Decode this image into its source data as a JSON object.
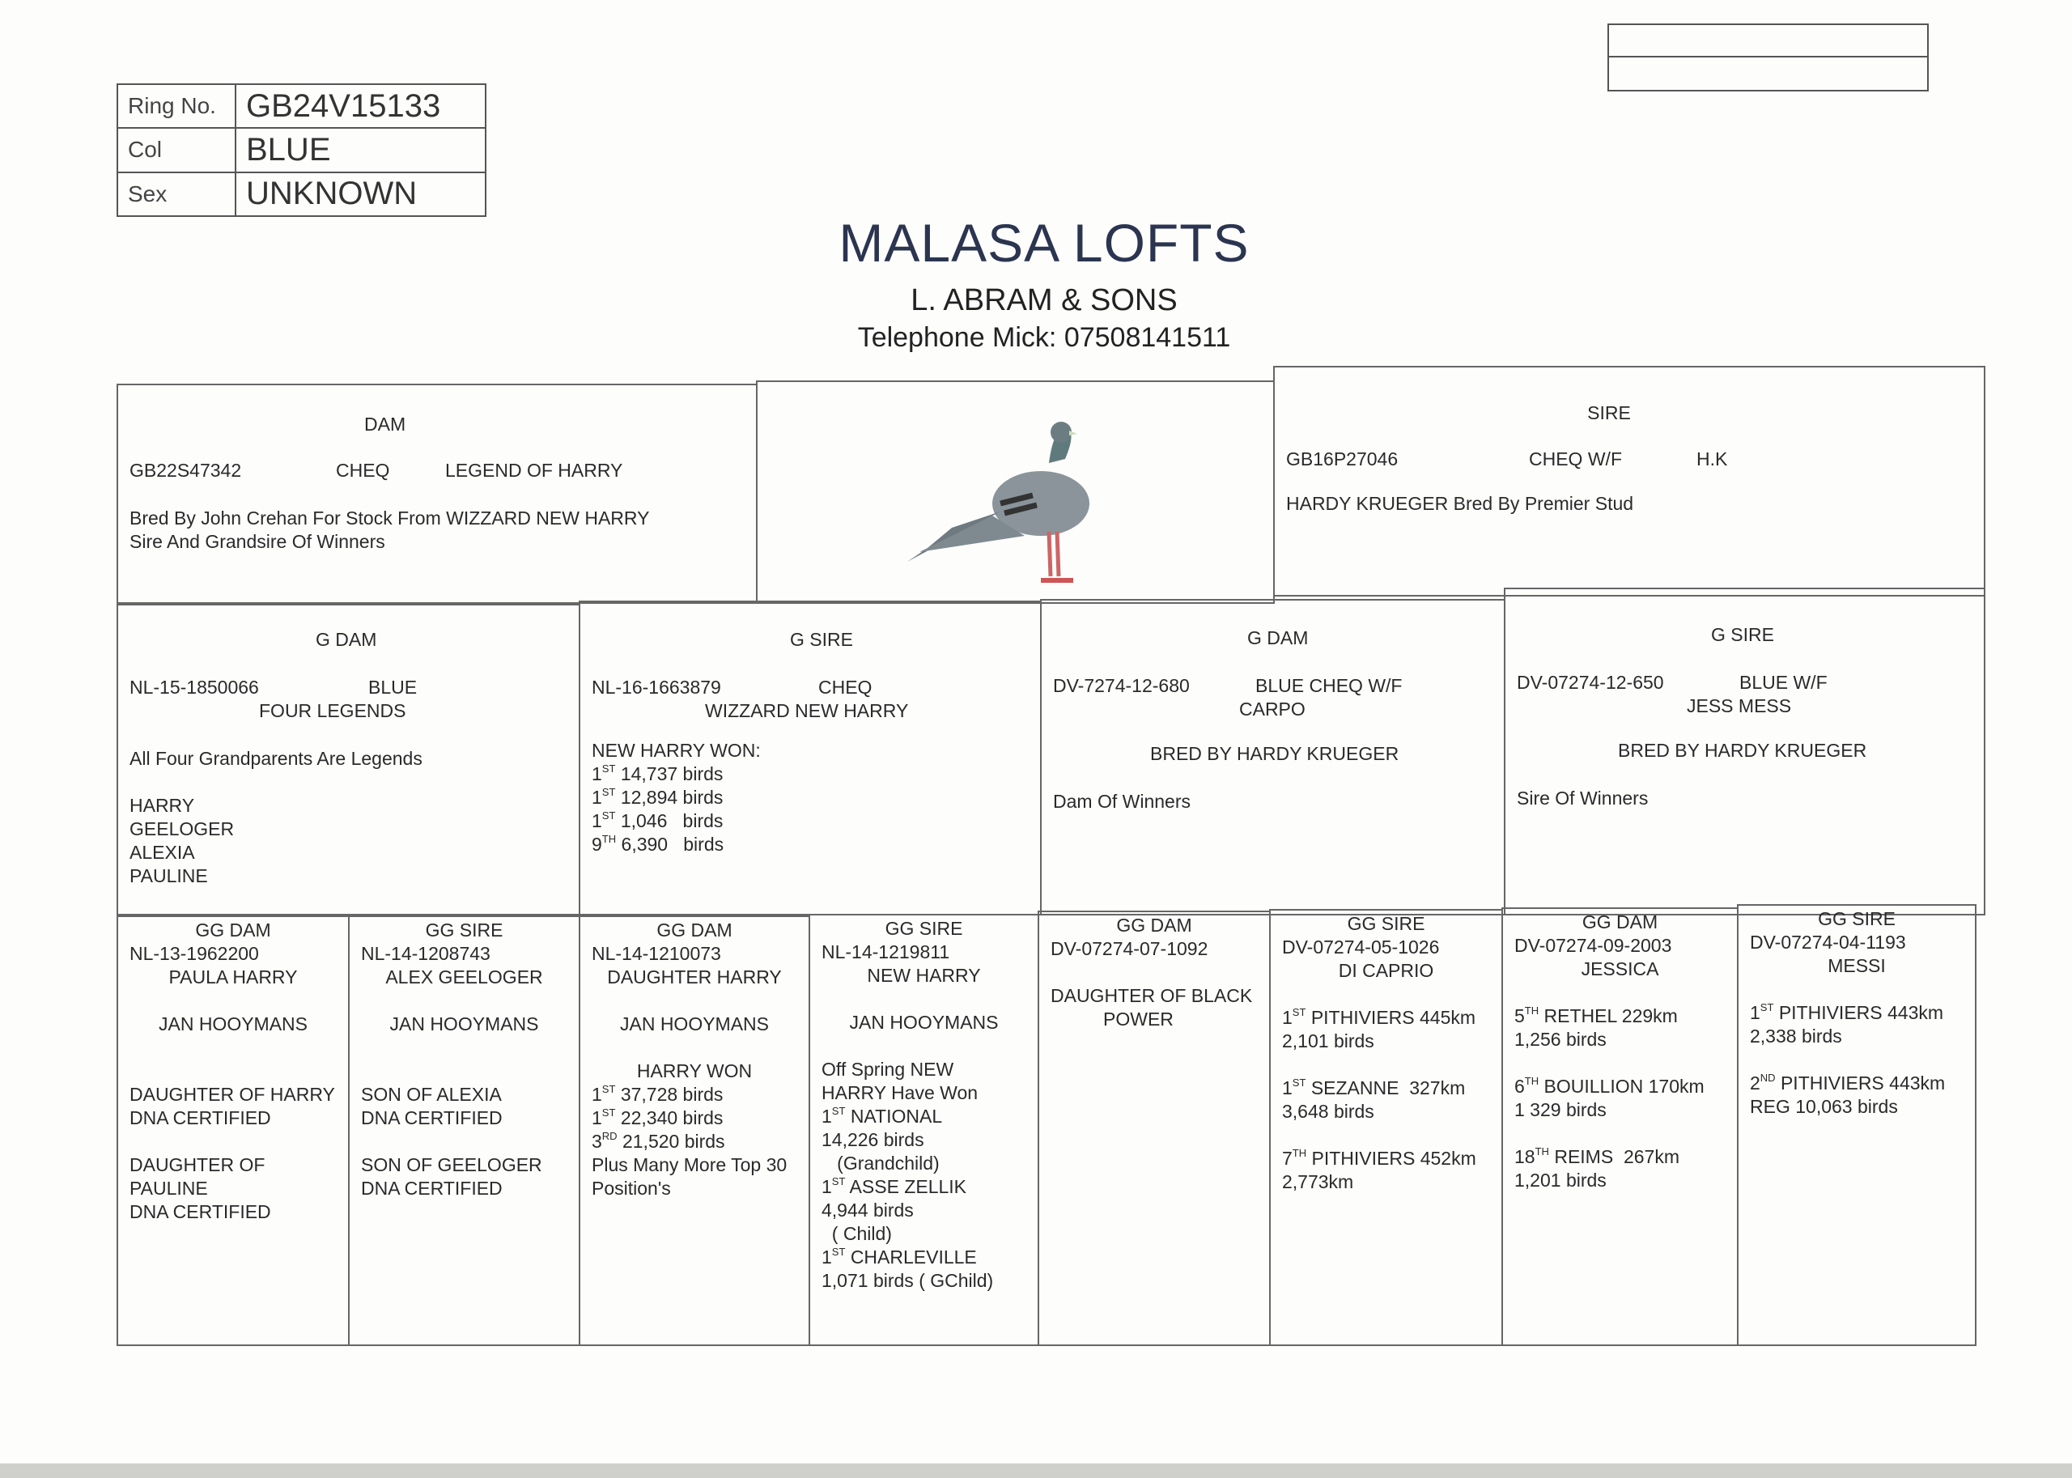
{
  "id_table": [
    {
      "label": "Ring No.",
      "value": "GB24V15133"
    },
    {
      "label": "Col",
      "value": "BLUE"
    },
    {
      "label": "Sex",
      "value": "UNKNOWN"
    }
  ],
  "header": {
    "title": "MALASA LOFTS",
    "subtitle": "L. ABRAM & SONS",
    "telephone": "Telephone Mick: 07508141511"
  },
  "dam": {
    "heading": "DAM",
    "ring": "GB22S47342",
    "colour": "CHEQ",
    "name": "LEGEND OF HARRY",
    "line1": "Bred By John Crehan  For Stock From WIZZARD NEW HARRY",
    "line2": "Sire And Grandsire Of Winners"
  },
  "photo": {
    "icon": "pigeon-image"
  },
  "sire": {
    "heading": "SIRE",
    "ring": "GB16P27046",
    "colour": "CHEQ W/F",
    "code": "H.K",
    "line1": "HARDY KRUEGER  Bred By Premier Stud"
  },
  "g_dam_1": {
    "heading": "G DAM",
    "ring": "NL-15-1850066",
    "colour": "BLUE",
    "name": "FOUR LEGENDS",
    "note": "All Four Grandparents Are Legends",
    "names": [
      "HARRY",
      "GEELOGER",
      "ALEXIA",
      "PAULINE"
    ]
  },
  "g_sire_1": {
    "heading": "G SIRE",
    "ring": "NL-16-1663879",
    "colour": "CHEQ",
    "name": "WIZZARD NEW HARRY",
    "won": "NEW HARRY WON:",
    "results": [
      {
        "pos": "1",
        "suf": "ST",
        "text": "14,737 birds"
      },
      {
        "pos": "1",
        "suf": "ST",
        "text": "12,894 birds"
      },
      {
        "pos": "1",
        "suf": "ST",
        "text": "1,046   birds"
      },
      {
        "pos": "9",
        "suf": "TH",
        "text": "6,390   birds"
      }
    ]
  },
  "g_dam_2": {
    "heading": "G DAM",
    "ring": "DV-7274-12-680",
    "colour": "BLUE CHEQ W/F",
    "name": "CARPO",
    "bred": "BRED BY HARDY KRUEGER",
    "note": "Dam Of Winners"
  },
  "g_sire_2": {
    "heading": "G SIRE",
    "ring": "DV-07274-12-650",
    "colour": "BLUE W/F",
    "name": "JESS MESS",
    "bred": "BRED BY HARDY KRUEGER",
    "note": "Sire Of Winners"
  },
  "gg": [
    {
      "heading": "GG DAM",
      "ring": "NL-13-1962200",
      "name": "PAULA HARRY",
      "breeder": "JAN HOOYMANS",
      "lines": [
        "DAUGHTER OF HARRY",
        "DNA CERTIFIED",
        "",
        "DAUGHTER OF",
        "PAULINE",
        "DNA CERTIFIED"
      ]
    },
    {
      "heading": "GG SIRE",
      "ring": "NL-14-1208743",
      "name": "ALEX GEELOGER",
      "breeder": "JAN HOOYMANS",
      "lines": [
        "SON OF ALEXIA",
        "DNA CERTIFIED",
        "",
        "SON OF GEELOGER",
        "DNA CERTIFIED"
      ]
    },
    {
      "heading": "GG DAM",
      "ring": "NL-14-1210073",
      "name": "DAUGHTER HARRY",
      "breeder": "JAN HOOYMANS",
      "won": "HARRY WON",
      "results": [
        {
          "pos": "1",
          "suf": "ST",
          "text": "37,728 birds"
        },
        {
          "pos": "1",
          "suf": "ST",
          "text": "22,340 birds"
        },
        {
          "pos": "3",
          "suf": "RD",
          "text": "21,520 birds"
        }
      ],
      "lines": [
        "Plus Many More Top 30",
        "Position's"
      ]
    },
    {
      "heading": "GG SIRE",
      "ring": "NL-14-1219811",
      "name": "NEW HARRY",
      "breeder": "JAN HOOYMANS",
      "lines": [
        "Off Spring NEW",
        "HARRY Have Won"
      ],
      "results": [
        {
          "pos": "1",
          "suf": "ST",
          "text": "NATIONAL"
        },
        {
          "pos": "",
          "suf": "",
          "text": "14,226 birds"
        },
        {
          "pos": "",
          "suf": "",
          "text": "   (Grandchild)"
        },
        {
          "pos": "1",
          "suf": "ST",
          "text": "ASSE ZELLIK"
        },
        {
          "pos": "",
          "suf": "",
          "text": "4,944 birds"
        },
        {
          "pos": "",
          "suf": "",
          "text": "  ( Child)"
        },
        {
          "pos": "1",
          "suf": "ST",
          "text": "CHARLEVILLE"
        },
        {
          "pos": "",
          "suf": "",
          "text": "1,071 birds ( GChild)"
        }
      ]
    },
    {
      "heading": "GG DAM",
      "ring": "DV-07274-07-1092",
      "lines": [
        "DAUGHTER OF BLACK",
        "POWER"
      ]
    },
    {
      "heading": "GG SIRE",
      "ring": "DV-07274-05-1026",
      "name": "DI CAPRIO",
      "results": [
        {
          "pos": "1",
          "suf": "ST",
          "text": "PITHIVIERS 445km",
          "sub": "2,101 birds"
        },
        {
          "pos": "1",
          "suf": "ST",
          "text": "SEZANNE  327km",
          "sub": "3,648 birds"
        },
        {
          "pos": "7",
          "suf": "TH",
          "text": "PITHIVIERS 452km",
          "sub": "2,773km"
        }
      ]
    },
    {
      "heading": "GG DAM",
      "ring": "DV-07274-09-2003",
      "name": "JESSICA",
      "results": [
        {
          "pos": "5",
          "suf": "TH",
          "text": "RETHEL 229km",
          "sub": "1,256 birds"
        },
        {
          "pos": "6",
          "suf": "TH",
          "text": "BOUILLION 170km",
          "sub": "1 329 birds"
        },
        {
          "pos": "18",
          "suf": "TH",
          "text": "REIMS  267km",
          "sub": "1,201 birds"
        }
      ]
    },
    {
      "heading": "GG SIRE",
      "ring": "DV-07274-04-1193",
      "name": "MESSI",
      "results": [
        {
          "pos": "1",
          "suf": "ST",
          "text": "PITHIVIERS 443km",
          "sub": "2,338 birds"
        },
        {
          "pos": "2",
          "suf": "ND",
          "text": "PITHIVIERS 443km",
          "sub": "REG 10,063 birds"
        }
      ]
    }
  ]
}
